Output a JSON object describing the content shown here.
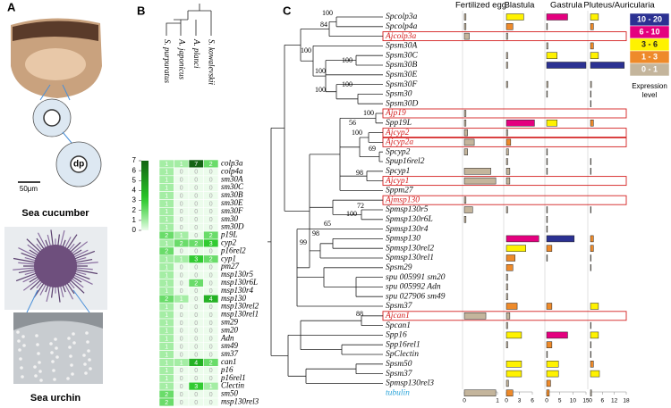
{
  "panel_a": {
    "letter": "A",
    "dp": "dp",
    "scale": "50μm",
    "cucumber": "Sea cucumber",
    "urchin": "Sea urchin"
  },
  "panel_b": {
    "letter": "B",
    "species": [
      "S. purpuratus",
      "A. japonicus",
      "A. planci",
      "S. kowalevskii"
    ],
    "genes": [
      "colp3a",
      "colp4a",
      "sm30A",
      "sm30C",
      "sm30B",
      "sm30E",
      "sm30F",
      "sm30",
      "sm30D",
      "p19L",
      "cyp2",
      "p16rel2",
      "cyp1",
      "pm27",
      "msp130r5",
      "msp130r6L",
      "msp130r4",
      "msp130",
      "msp130rel2",
      "msp130rel1",
      "sm29",
      "sm20",
      "Adn",
      "sm49",
      "sm37",
      "can1",
      "p16",
      "p16rel1",
      "Clectin",
      "sm50",
      "msp130rel3"
    ],
    "values": [
      [
        1,
        1,
        7,
        2
      ],
      [
        1,
        0,
        0,
        0
      ],
      [
        1,
        0,
        0,
        0
      ],
      [
        1,
        0,
        0,
        0
      ],
      [
        1,
        0,
        0,
        0
      ],
      [
        1,
        0,
        0,
        0
      ],
      [
        1,
        0,
        0,
        0
      ],
      [
        1,
        0,
        0,
        0
      ],
      [
        1,
        0,
        0,
        0
      ],
      [
        2,
        1,
        0,
        2
      ],
      [
        1,
        2,
        2,
        3
      ],
      [
        2,
        0,
        0,
        0
      ],
      [
        1,
        1,
        3,
        2
      ],
      [
        1,
        0,
        0,
        0
      ],
      [
        1,
        0,
        0,
        0
      ],
      [
        1,
        0,
        2,
        0
      ],
      [
        1,
        0,
        0,
        0
      ],
      [
        2,
        1,
        0,
        4
      ],
      [
        1,
        0,
        0,
        0
      ],
      [
        1,
        0,
        0,
        0
      ],
      [
        1,
        0,
        0,
        0
      ],
      [
        1,
        0,
        0,
        0
      ],
      [
        1,
        0,
        0,
        0
      ],
      [
        1,
        0,
        0,
        0
      ],
      [
        1,
        0,
        0,
        0
      ],
      [
        1,
        1,
        4,
        2
      ],
      [
        1,
        0,
        0,
        0
      ],
      [
        1,
        0,
        0,
        0
      ],
      [
        1,
        0,
        3,
        1
      ],
      [
        2,
        0,
        0,
        0
      ],
      [
        2,
        0,
        0,
        0
      ]
    ],
    "colorbar_ticks": [
      0,
      1,
      2,
      3,
      4,
      5,
      6,
      7
    ]
  },
  "panel_c": {
    "letter": "C",
    "stages": [
      {
        "name": "Fertilized egg",
        "lim": [
          0,
          1
        ],
        "ticks": [
          0,
          1
        ]
      },
      {
        "name": "Blastula",
        "lim": [
          0,
          6
        ],
        "ticks": [
          0,
          3,
          6
        ]
      },
      {
        "name": "Gastrula",
        "lim": [
          0,
          15
        ],
        "ticks": [
          0,
          5,
          10,
          15
        ]
      },
      {
        "name": "Pluteus/Auricularia",
        "lim": [
          0,
          18
        ],
        "ticks": [
          0,
          6,
          12,
          18
        ]
      }
    ],
    "genes": [
      {
        "label": "Spcolp3a",
        "values": [
          0.05,
          4,
          8,
          4
        ]
      },
      {
        "label": "Spcolp4a",
        "values": [
          0.05,
          1.5,
          0.3,
          1.5
        ]
      },
      {
        "label": "Ajcolp3a",
        "values": [
          0.15,
          0.3,
          0,
          0
        ],
        "color": "#d42020",
        "box": true
      },
      {
        "label": "Spsm30A",
        "values": [
          0,
          0,
          0.5,
          1.5
        ]
      },
      {
        "label": "Spsm30C",
        "values": [
          0,
          0.3,
          4,
          4
        ]
      },
      {
        "label": "Spsm30B",
        "values": [
          0,
          0.3,
          15,
          17
        ]
      },
      {
        "label": "Spsm30E",
        "values": [
          0,
          0,
          0,
          0
        ]
      },
      {
        "label": "Spsm30F",
        "values": [
          0,
          0.3,
          0.5,
          0.5
        ]
      },
      {
        "label": "Spsm30",
        "values": [
          0,
          0,
          0.3,
          0.3
        ]
      },
      {
        "label": "Spsm30D",
        "values": [
          0,
          0,
          0,
          0.3
        ]
      },
      {
        "label": "Ajp19",
        "values": [
          0.05,
          0,
          0,
          0
        ],
        "color": "#d42020",
        "box": true
      },
      {
        "label": "Spp19L",
        "values": [
          0.05,
          6.5,
          4,
          1.5
        ]
      },
      {
        "label": "Ajcyp2",
        "values": [
          0.1,
          0.3,
          0,
          0
        ],
        "color": "#d42020",
        "box": true
      },
      {
        "label": "Ajcyp2a",
        "values": [
          0.3,
          1,
          0,
          0
        ],
        "color": "#d42020",
        "box": true
      },
      {
        "label": "Spcyp2",
        "values": [
          0.1,
          0.5,
          0.3,
          0
        ]
      },
      {
        "label": "Spup16rel2",
        "values": [
          0,
          0.3,
          0.3,
          0.3
        ]
      },
      {
        "label": "Spcyp1",
        "values": [
          0.8,
          0.8,
          0.3,
          0.3
        ]
      },
      {
        "label": "Ajcyp1",
        "values": [
          0.95,
          0.8,
          0,
          0
        ],
        "color": "#d42020",
        "box": true
      },
      {
        "label": "Sppm27",
        "values": [
          0,
          0,
          0,
          0
        ]
      },
      {
        "label": "Ajmsp130",
        "values": [
          0.05,
          0,
          0,
          0
        ],
        "color": "#d42020",
        "box": true
      },
      {
        "label": "Spmsp130r5",
        "values": [
          0.25,
          0.3,
          0.3,
          0.3
        ]
      },
      {
        "label": "Spmsp130r6L",
        "values": [
          0.05,
          0,
          0.3,
          0
        ]
      },
      {
        "label": "Spmsp130r4",
        "values": [
          0,
          0,
          0.3,
          0
        ]
      },
      {
        "label": "Spmsp130",
        "values": [
          0,
          7.5,
          10.5,
          1.5
        ]
      },
      {
        "label": "Spmsp130rel2",
        "values": [
          0,
          4.5,
          2,
          1.5
        ]
      },
      {
        "label": "Spmsp130rel1",
        "values": [
          0,
          2,
          0.3,
          0.3
        ]
      },
      {
        "label": "Spsm29",
        "values": [
          0,
          1.5,
          0,
          0.3
        ]
      },
      {
        "label": "spu 005991 sm20",
        "values": [
          0,
          0.3,
          0,
          0
        ]
      },
      {
        "label": "spu 005992 Adn",
        "values": [
          0,
          0.3,
          0,
          0
        ]
      },
      {
        "label": "spu 027906 sm49",
        "values": [
          0,
          0.3,
          0,
          0
        ]
      },
      {
        "label": "Spsm37",
        "values": [
          0,
          2.5,
          2,
          4
        ]
      },
      {
        "label": "Ajcan1",
        "values": [
          0.65,
          0.8,
          0,
          0
        ],
        "color": "#d42020",
        "box": true
      },
      {
        "label": "Spcan1",
        "values": [
          0,
          0.3,
          0,
          0.3
        ]
      },
      {
        "label": "Spp16",
        "values": [
          0,
          3.5,
          8,
          4
        ]
      },
      {
        "label": "Spp16rel1",
        "values": [
          0,
          0.3,
          2,
          0.3
        ]
      },
      {
        "label": "SpClectin",
        "values": [
          0,
          0,
          0.3,
          0.3
        ]
      },
      {
        "label": "Spsm50",
        "values": [
          0,
          3.5,
          4.5,
          1.5
        ]
      },
      {
        "label": "Spsm37",
        "values": [
          0,
          3.5,
          4.5,
          4.5
        ]
      },
      {
        "label": "Spmsp130rel3",
        "values": [
          0,
          0.5,
          1.5,
          0
        ]
      },
      {
        "label": "tubulin",
        "values": [
          0.95,
          1.5,
          1,
          0.5
        ],
        "color": "#29a3d8"
      }
    ],
    "bootstrap": [
      100,
      84,
      100,
      100,
      100,
      100,
      100,
      100,
      56,
      100,
      69,
      98,
      72,
      100,
      65,
      98,
      99,
      88
    ],
    "levels": [
      {
        "label": "10 - 20",
        "color": "#2b3192"
      },
      {
        "label": "6 - 10",
        "color": "#e4007f"
      },
      {
        "label": "3 - 6",
        "color": "#fff200"
      },
      {
        "label": "1 - 3",
        "color": "#ee8a2a"
      },
      {
        "label": "0 - 1",
        "color": "#c4b59c"
      }
    ],
    "legend_title": [
      "Expression",
      "level"
    ]
  }
}
